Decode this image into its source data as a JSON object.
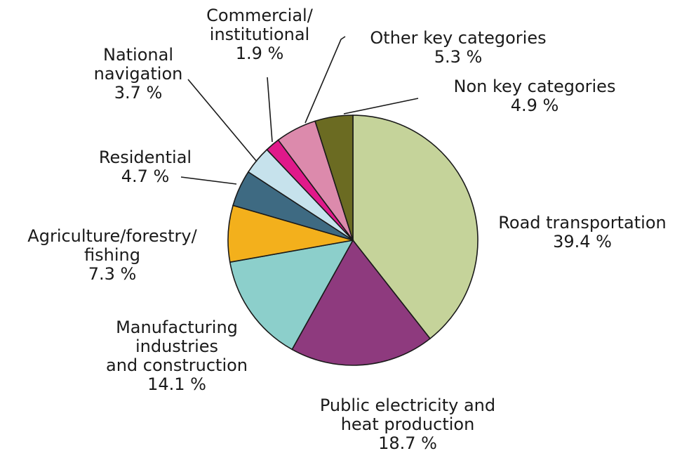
{
  "chart_data": {
    "type": "pie",
    "title": "",
    "start": "12 o'clock",
    "direction": "clockwise",
    "slices": [
      {
        "label": [
          "Road transportation"
        ],
        "value_text": "39.4 %",
        "value": 39.4,
        "color": "#c5d39a"
      },
      {
        "label": [
          "Public electricity and",
          "heat production"
        ],
        "value_text": "18.7 %",
        "value": 18.7,
        "color": "#8e3a7e"
      },
      {
        "label": [
          "Manufacturing",
          "industries",
          "and construction"
        ],
        "value_text": "14.1 %",
        "value": 14.1,
        "color": "#8ccfcb"
      },
      {
        "label": [
          "Agriculture/forestry/",
          "fishing"
        ],
        "value_text": "7.3 %",
        "value": 7.3,
        "color": "#f3b01c"
      },
      {
        "label": [
          "Residential"
        ],
        "value_text": "4.7 %",
        "value": 4.7,
        "color": "#3e6a82"
      },
      {
        "label": [
          "National",
          "navigation"
        ],
        "value_text": "3.7 %",
        "value": 3.7,
        "color": "#c6e2ec"
      },
      {
        "label": [
          "Commercial/",
          "institutional"
        ],
        "value_text": "1.9 %",
        "value": 1.9,
        "color": "#e0198a"
      },
      {
        "label": [
          "Other key categories"
        ],
        "value_text": "5.3 %",
        "value": 5.3,
        "color": "#dc8aac"
      },
      {
        "label": [
          "Non key categories"
        ],
        "value_text": "4.9 %",
        "value": 4.9,
        "color": "#6b6b22"
      }
    ]
  }
}
